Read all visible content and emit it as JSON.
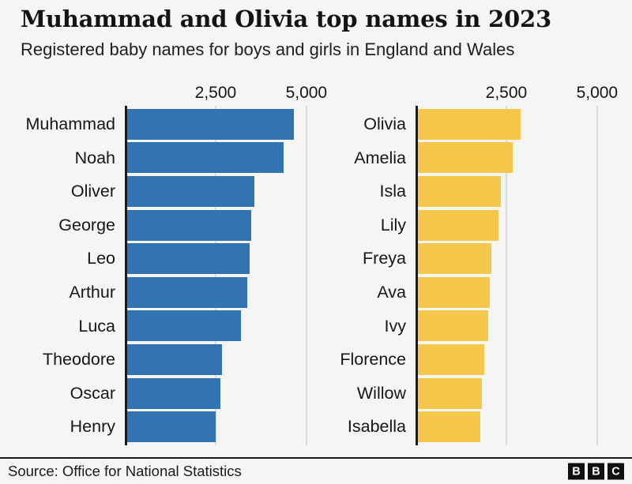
{
  "header": {
    "title": "Muhammad and Olivia top names in 2023",
    "subtitle": "Registered baby names for boys and girls in England and Wales"
  },
  "footer": {
    "source": "Source: Office for National Statistics",
    "logo_letters": [
      "B",
      "B",
      "C"
    ]
  },
  "colors": {
    "boys_bar": "#3273B2",
    "girls_bar": "#F5C84C",
    "axis": "#1A1A1A",
    "gridline": "#DBDBD7",
    "background": "#F5F5F3",
    "text": "#161616"
  },
  "chart_data": [
    {
      "type": "bar",
      "orientation": "horizontal",
      "series_name": "boys",
      "categories": [
        "Muhammad",
        "Noah",
        "Oliver",
        "George",
        "Leo",
        "Arthur",
        "Luca",
        "Theodore",
        "Oscar",
        "Henry"
      ],
      "values": [
        4660,
        4380,
        3560,
        3490,
        3430,
        3380,
        3190,
        2680,
        2630,
        2500
      ],
      "xlim": [
        0,
        5830
      ],
      "ticks": [
        2500,
        5000
      ],
      "tick_labels": [
        "2,500",
        "5,000"
      ],
      "bar_color": "#3273B2",
      "grid": "vertical-gridlines-at-ticks",
      "legend": "none"
    },
    {
      "type": "bar",
      "orientation": "horizontal",
      "series_name": "girls",
      "categories": [
        "Olivia",
        "Amelia",
        "Isla",
        "Lily",
        "Freya",
        "Ava",
        "Ivy",
        "Florence",
        "Willow",
        "Isabella"
      ],
      "values": [
        2900,
        2670,
        2340,
        2280,
        2080,
        2050,
        2000,
        1900,
        1830,
        1790
      ],
      "xlim": [
        0,
        5830
      ],
      "ticks": [
        2500,
        5000
      ],
      "tick_labels": [
        "2,500",
        "5,000"
      ],
      "bar_color": "#F5C84C",
      "grid": "vertical-gridlines-at-ticks",
      "legend": "none"
    }
  ]
}
